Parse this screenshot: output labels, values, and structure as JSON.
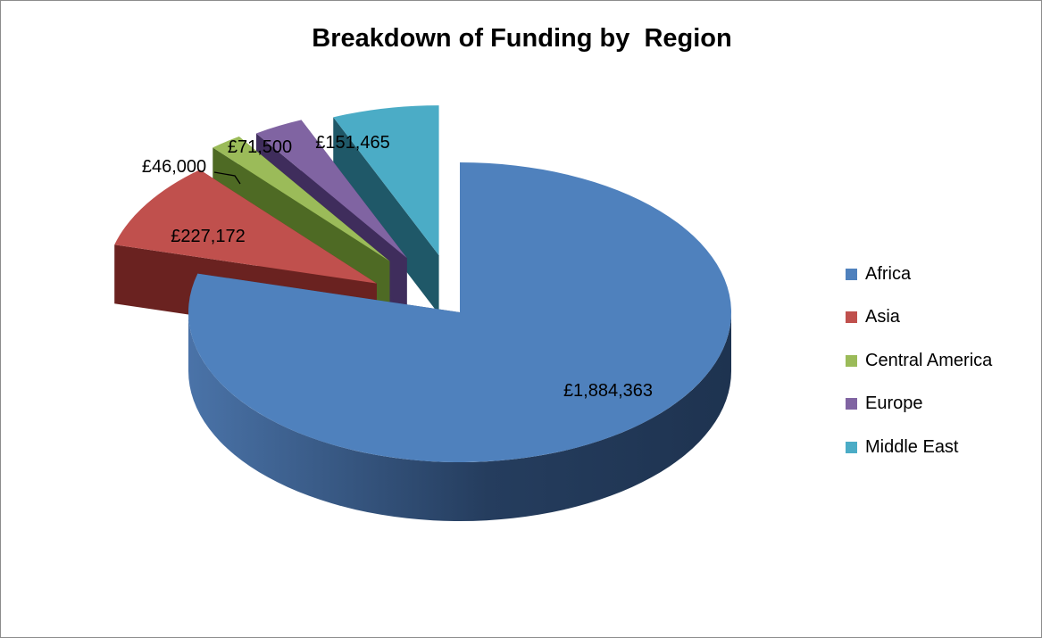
{
  "chart_data": {
    "type": "pie",
    "title": "Breakdown of Funding by  Region",
    "three_d": true,
    "exploded": true,
    "start_angle_deg": 0,
    "direction": "clockwise",
    "legend_position": "right",
    "slices": [
      {
        "label": "Africa",
        "value": 1884363,
        "display": "£1,884,363",
        "color": "#4f81bd",
        "side": "#2c4a70"
      },
      {
        "label": "Asia",
        "value": 227172,
        "display": "£227,172",
        "color": "#c0504d",
        "side": "#6a2220"
      },
      {
        "label": "Central America",
        "value": 46000,
        "display": "£46,000",
        "color": "#9bbb59",
        "side": "#4e6a24"
      },
      {
        "label": "Europe",
        "value": 71500,
        "display": "£71,500",
        "color": "#8064a2",
        "side": "#3f2d5c"
      },
      {
        "label": "Middle East",
        "value": 151465,
        "display": "£151,465",
        "color": "#4bacc6",
        "side": "#1f5868"
      }
    ]
  }
}
